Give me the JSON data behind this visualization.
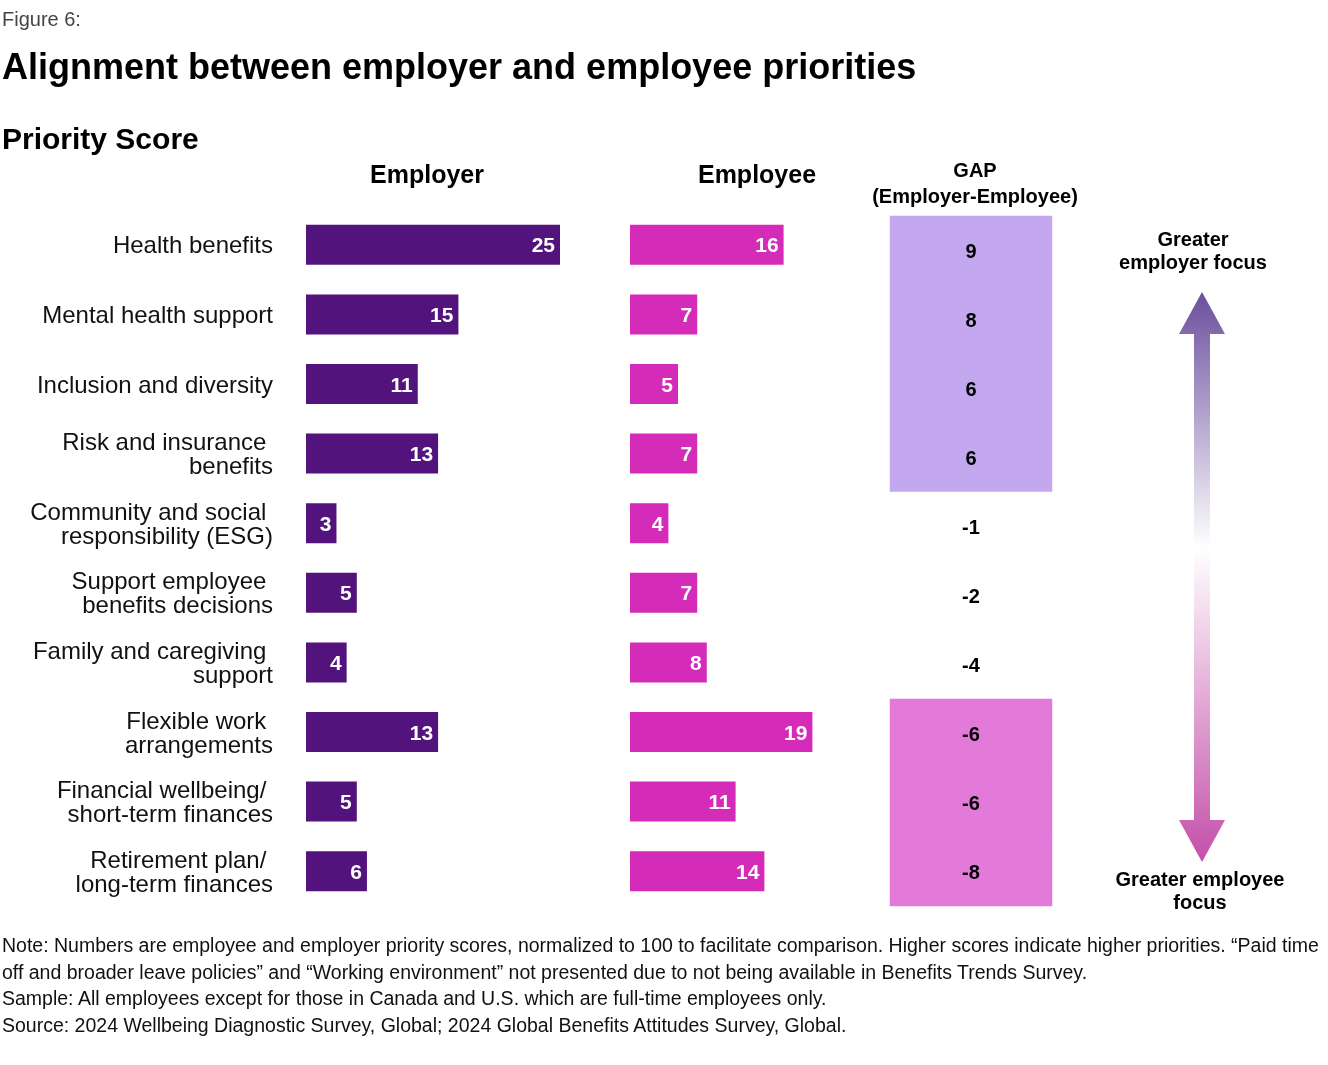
{
  "chart_data": [
    {
      "type": "bar",
      "title": "Alignment between employer and employee priorities",
      "subtitle": "Priority Score",
      "xlabel": "Employer",
      "orientation": "horizontal",
      "data_labels": true,
      "tick_labels": "y",
      "categories": [
        "Health benefits",
        "Mental health support",
        "Inclusion and diversity",
        "Risk and insurance benefits",
        "Community and social responsibility (ESG)",
        "Support employee benefits decisions",
        "Family and caregiving support",
        "Flexible work arrangements",
        "Financial wellbeing/ short-term finances",
        "Retirement plan/ long-term finances"
      ],
      "values": [
        25,
        15,
        11,
        13,
        3,
        5,
        4,
        13,
        5,
        6
      ],
      "color": "#52137c",
      "annotations": [
        "Figure 6:",
        "Note: Numbers are employee and employer priority scores, normalized to 100 to facilitate comparison. Higher scores indicate higher priorities. “Paid time off and broader leave policies” and “Working environment” not presented due to not being available in Benefits Trends Survey.",
        "Sample: All employees except for those in Canada and U.S. which are full-time employees only.",
        "Source: 2024 Wellbeing Diagnostic Survey, Global; 2024 Global Benefits Attitudes Survey, Global."
      ]
    },
    {
      "type": "bar",
      "xlabel": "Employee",
      "orientation": "horizontal",
      "data_labels": true,
      "tick_labels": false,
      "categories": [
        "Health benefits",
        "Mental health support",
        "Inclusion and diversity",
        "Risk and insurance benefits",
        "Community and social responsibility (ESG)",
        "Support employee benefits decisions",
        "Family and caregiving support",
        "Flexible work arrangements",
        "Financial wellbeing/ short-term finances",
        "Retirement plan/ long-term finances"
      ],
      "values": [
        16,
        7,
        5,
        7,
        4,
        7,
        8,
        19,
        11,
        14
      ],
      "color": "#d42bb8"
    },
    {
      "type": "heatmap",
      "xlabel": "GAP\n(Employer-Employee)",
      "tick_labels": false,
      "data_labels": true,
      "categories": [
        null
      ],
      "y_categories": [
        null,
        null,
        null,
        null,
        null,
        null,
        null,
        null,
        null,
        null
      ],
      "cells": [
        [
          9
        ],
        [
          8
        ],
        [
          6
        ],
        [
          6
        ],
        [
          -1
        ],
        [
          -2
        ],
        [
          -4
        ],
        [
          -6
        ],
        [
          -6
        ],
        [
          -8
        ]
      ],
      "colors": [
        "#c3a7ef",
        "#c3a7ef",
        "#c3a7ef",
        "#c3a7ef",
        "#ffffff",
        "#ffffff",
        "#ffffff",
        "#e37ada",
        "#e37ada",
        "#e37ada"
      ],
      "annotations": [
        "Greater employer focus",
        "Greater employee focus"
      ]
    }
  ]
}
